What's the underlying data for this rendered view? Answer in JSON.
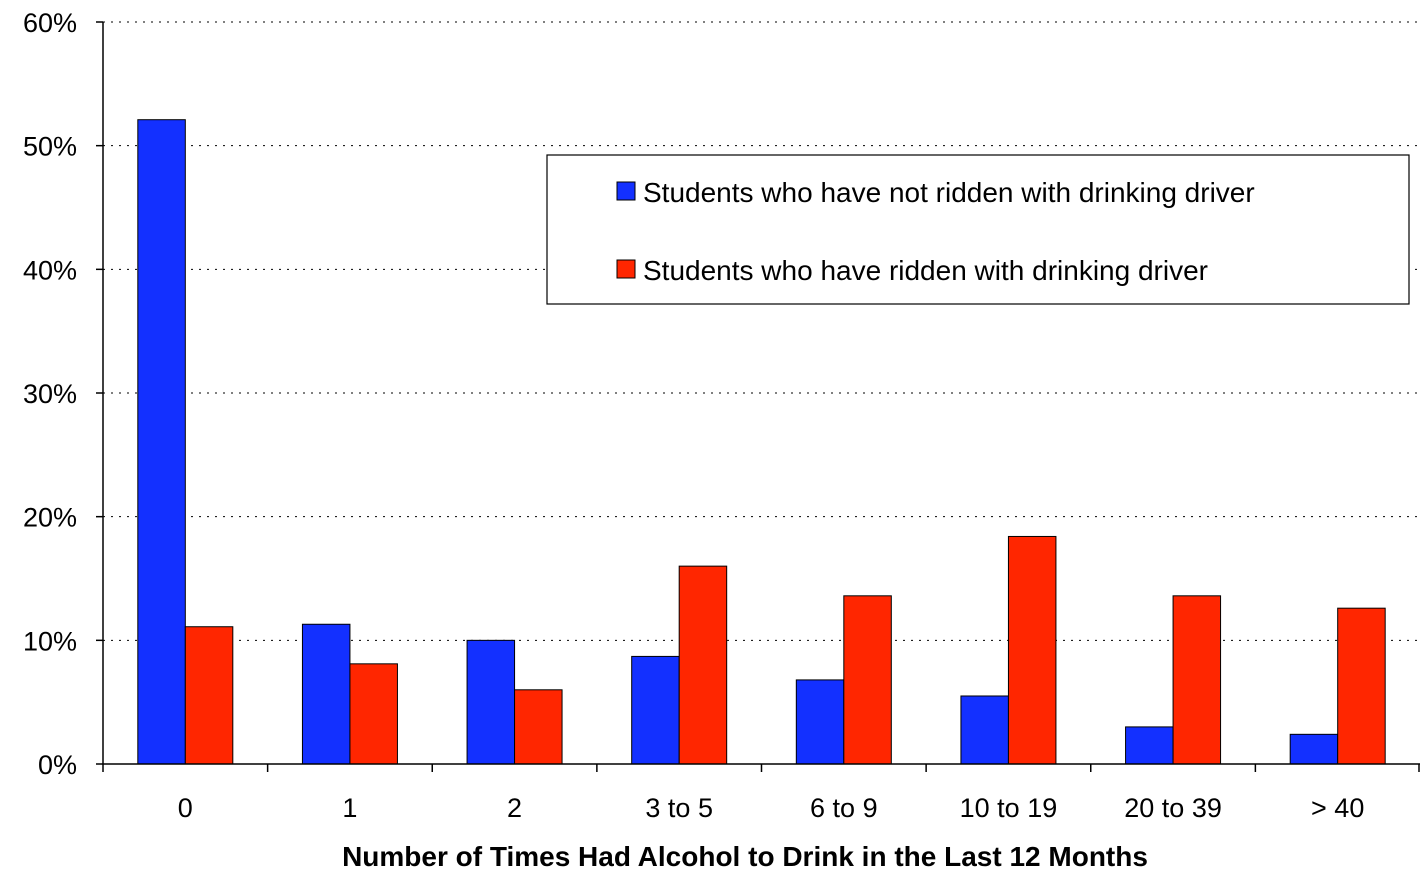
{
  "chart_data": {
    "type": "bar",
    "title": "",
    "xlabel": "Number of Times Had Alcohol to Drink in the Last 12 Months",
    "ylabel": "",
    "categories": [
      "0",
      "1",
      "2",
      "3 to 5",
      "6 to 9",
      "10 to 19",
      "20 to 39",
      "> 40"
    ],
    "series": [
      {
        "name": "Students who have not ridden with drinking driver",
        "color": "#1330ff",
        "values": [
          52.1,
          11.3,
          10.0,
          8.7,
          6.8,
          5.5,
          3.0,
          2.4
        ]
      },
      {
        "name": "Students who have ridden with drinking driver",
        "color": "#ff2600",
        "values": [
          11.1,
          8.1,
          6.0,
          16.0,
          13.6,
          18.4,
          13.6,
          12.6
        ]
      }
    ],
    "ylim": [
      0,
      60
    ],
    "yticks": [
      "0%",
      "10%",
      "20%",
      "30%",
      "40%",
      "50%",
      "60%"
    ],
    "grid": true,
    "legend_position": "top-right"
  }
}
